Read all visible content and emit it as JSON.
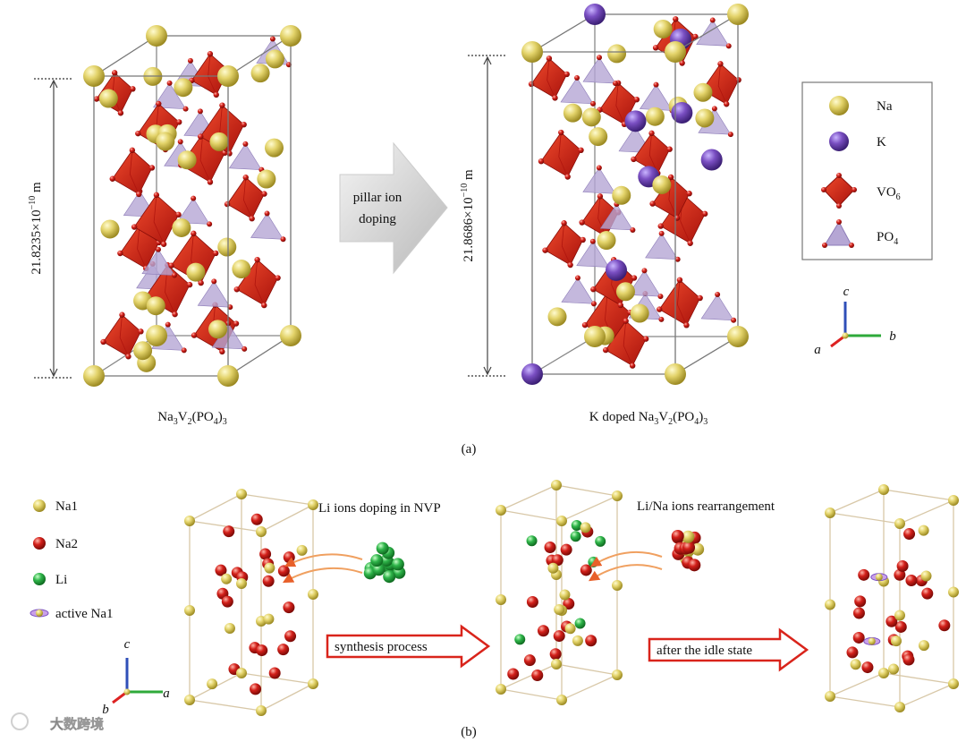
{
  "panel_a": {
    "left_dimension": {
      "prefix": "21.8235×10",
      "exp": "−10",
      "unit": " m"
    },
    "right_dimension": {
      "prefix": "21.8686×10",
      "exp": "−10",
      "unit": " m"
    },
    "arrow_label": [
      "pillar ion",
      "doping"
    ],
    "left_formula": [
      {
        "text": "Na",
        "sub": false
      },
      {
        "text": "3",
        "sub": true
      },
      {
        "text": "V",
        "sub": false
      },
      {
        "text": "2",
        "sub": true
      },
      {
        "text": "(PO",
        "sub": false
      },
      {
        "text": "4",
        "sub": true
      },
      {
        "text": ")",
        "sub": false
      },
      {
        "text": "3",
        "sub": true
      }
    ],
    "right_formula": [
      {
        "text": "K doped Na",
        "sub": false
      },
      {
        "text": "3",
        "sub": true
      },
      {
        "text": "V",
        "sub": false
      },
      {
        "text": "2",
        "sub": true
      },
      {
        "text": "(PO",
        "sub": false
      },
      {
        "text": "4",
        "sub": true
      },
      {
        "text": ")",
        "sub": false
      },
      {
        "text": "3",
        "sub": true
      }
    ],
    "legend": [
      [
        {
          "text": "Na",
          "sub": false
        }
      ],
      [
        {
          "text": "K",
          "sub": false
        }
      ],
      [
        {
          "text": "VO",
          "sub": false
        },
        {
          "text": "6",
          "sub": true
        }
      ],
      [
        {
          "text": "PO",
          "sub": false
        },
        {
          "text": "4",
          "sub": true
        }
      ]
    ],
    "axes": {
      "c": "c",
      "b": "b",
      "a": "a"
    },
    "caption": "(a)"
  },
  "panel_b": {
    "legend": [
      "Na1",
      "Na2",
      "Li",
      "active Na1"
    ],
    "annotation_1": "Li ions doping in NVP",
    "annotation_2": "Li/Na ions rearrangement",
    "arrow_1": "synthesis process",
    "arrow_2": "after the idle state",
    "axes": {
      "c": "c",
      "a": "a",
      "b": "b"
    },
    "caption": "(b)"
  },
  "watermark": "大数跨境"
}
